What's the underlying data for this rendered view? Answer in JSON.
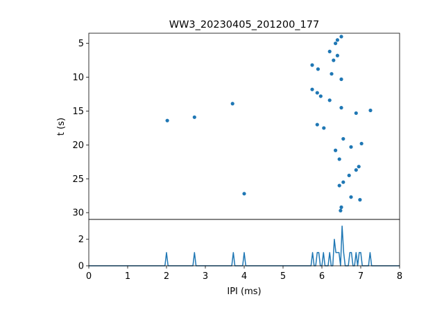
{
  "chart_data": {
    "title": "WW3_20230405_201200_177",
    "scatter": {
      "type": "scatter",
      "ylabel": "t (s)",
      "ylim": [
        31,
        3.5
      ],
      "y_inverted": true,
      "yticks": [
        5,
        10,
        15,
        20,
        25,
        30
      ],
      "color": "#1f77b4",
      "points": [
        {
          "x": 6.5,
          "y": 4.0
        },
        {
          "x": 6.4,
          "y": 4.5
        },
        {
          "x": 6.35,
          "y": 5.0
        },
        {
          "x": 6.2,
          "y": 6.2
        },
        {
          "x": 6.4,
          "y": 6.8
        },
        {
          "x": 6.3,
          "y": 7.5
        },
        {
          "x": 5.75,
          "y": 8.2
        },
        {
          "x": 5.9,
          "y": 8.8
        },
        {
          "x": 6.25,
          "y": 9.5
        },
        {
          "x": 6.5,
          "y": 10.3
        },
        {
          "x": 5.75,
          "y": 11.8
        },
        {
          "x": 5.88,
          "y": 12.3
        },
        {
          "x": 5.97,
          "y": 12.8
        },
        {
          "x": 6.2,
          "y": 13.4
        },
        {
          "x": 3.7,
          "y": 13.9
        },
        {
          "x": 6.5,
          "y": 14.5
        },
        {
          "x": 7.25,
          "y": 14.9
        },
        {
          "x": 6.88,
          "y": 15.3
        },
        {
          "x": 2.72,
          "y": 15.9
        },
        {
          "x": 2.02,
          "y": 16.4
        },
        {
          "x": 5.88,
          "y": 17.0
        },
        {
          "x": 6.05,
          "y": 17.5
        },
        {
          "x": 6.55,
          "y": 19.1
        },
        {
          "x": 7.02,
          "y": 19.8
        },
        {
          "x": 6.75,
          "y": 20.3
        },
        {
          "x": 6.35,
          "y": 20.8
        },
        {
          "x": 6.45,
          "y": 22.1
        },
        {
          "x": 6.95,
          "y": 23.2
        },
        {
          "x": 6.88,
          "y": 23.7
        },
        {
          "x": 6.7,
          "y": 24.5
        },
        {
          "x": 6.55,
          "y": 25.5
        },
        {
          "x": 6.45,
          "y": 26.0
        },
        {
          "x": 4.0,
          "y": 27.2
        },
        {
          "x": 6.75,
          "y": 27.7
        },
        {
          "x": 6.98,
          "y": 28.1
        },
        {
          "x": 6.5,
          "y": 29.2
        },
        {
          "x": 6.48,
          "y": 29.7
        }
      ]
    },
    "histogram": {
      "type": "line",
      "xlabel": "IPI (ms)",
      "xlim": [
        0,
        8
      ],
      "ylim": [
        0,
        3.5
      ],
      "xticks": [
        0,
        1,
        2,
        3,
        4,
        5,
        6,
        7,
        8
      ],
      "yticks": [
        0,
        2
      ],
      "color": "#1f77b4",
      "bin_width": 0.04,
      "spikes": [
        {
          "x": 2.0,
          "y": 1
        },
        {
          "x": 2.72,
          "y": 1
        },
        {
          "x": 3.7,
          "y": 1
        },
        {
          "x": 4.0,
          "y": 1
        },
        {
          "x": 5.75,
          "y": 1
        },
        {
          "x": 5.88,
          "y": 1
        },
        {
          "x": 5.93,
          "y": 1
        },
        {
          "x": 6.05,
          "y": 1
        },
        {
          "x": 6.2,
          "y": 1
        },
        {
          "x": 6.3,
          "y": 2
        },
        {
          "x": 6.35,
          "y": 1
        },
        {
          "x": 6.4,
          "y": 1
        },
        {
          "x": 6.45,
          "y": 1
        },
        {
          "x": 6.5,
          "y": 3
        },
        {
          "x": 6.55,
          "y": 1
        },
        {
          "x": 6.7,
          "y": 1
        },
        {
          "x": 6.75,
          "y": 1
        },
        {
          "x": 6.88,
          "y": 1
        },
        {
          "x": 6.95,
          "y": 1
        },
        {
          "x": 7.02,
          "y": 1
        },
        {
          "x": 7.25,
          "y": 1
        }
      ]
    }
  }
}
